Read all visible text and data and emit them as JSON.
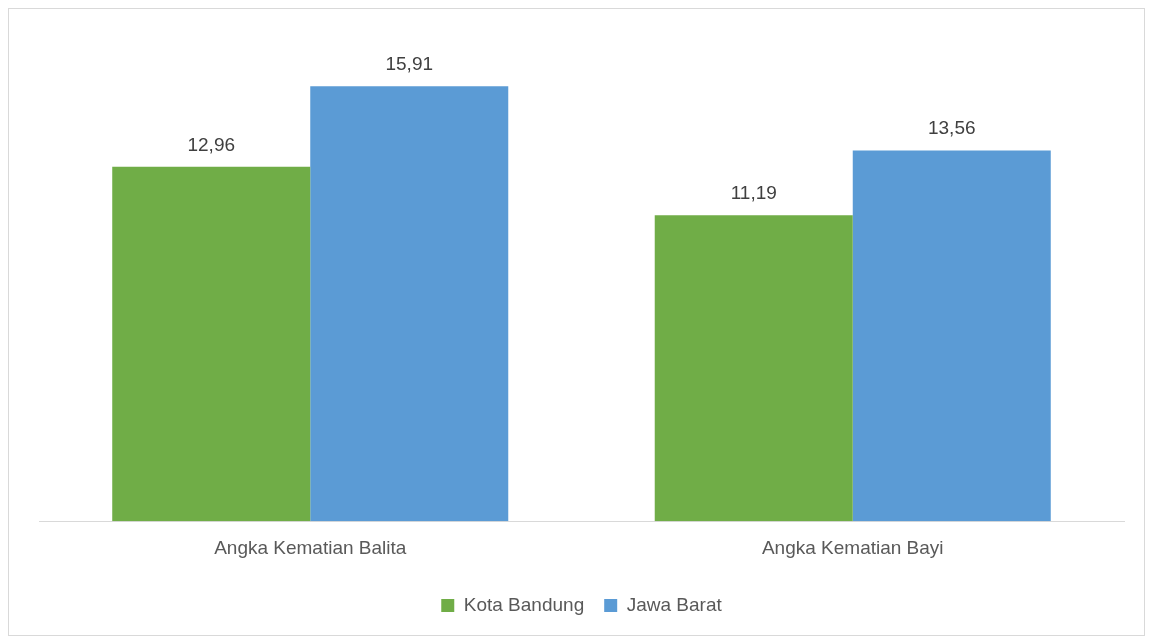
{
  "chart_data": {
    "type": "bar",
    "categories": [
      "Angka Kematian Balita",
      "Angka Kematian Bayi"
    ],
    "series": [
      {
        "name": "Kota Bandung",
        "color": "#70ad47",
        "values": [
          12.96,
          11.19
        ],
        "value_labels": [
          "12,96",
          "11,19"
        ]
      },
      {
        "name": "Jawa Barat",
        "color": "#5b9bd5",
        "values": [
          15.91,
          13.56
        ],
        "value_labels": [
          "15,91",
          "13,56"
        ]
      }
    ],
    "legend": "bottom",
    "grid": false
  }
}
